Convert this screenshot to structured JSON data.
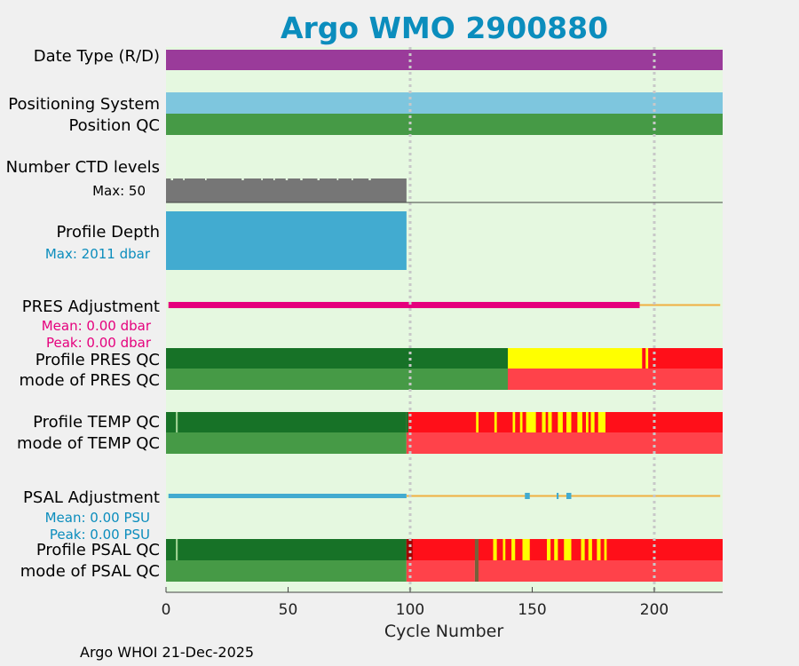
{
  "title": "Argo WMO 2900880",
  "footer": "Argo WHOI 21-Dec-2025",
  "colors": {
    "background": "#e5f8e0",
    "purple": "#9a3b9a",
    "light_blue": "#7ec6de",
    "green": "#469a46",
    "dark_green": "#177227",
    "gray": "#767676",
    "depth_blue": "#42abd0",
    "magenta": "#e5007d",
    "orange": "#f0b040",
    "yellow": "#ffff00",
    "red": "#ff0f19",
    "light_red": "#ff424a",
    "title_blue": "#0b8dbd"
  },
  "labels": {
    "date_type": "Date Type (R/D)",
    "positioning": "Positioning System",
    "position_qc": "Position QC",
    "ctd_levels": "Number CTD levels",
    "ctd_max": "Max: 50",
    "profile_depth": "Profile Depth",
    "depth_max": "Max: 2011 dbar",
    "pres_adj": "PRES Adjustment",
    "pres_mean": "Mean: 0.00 dbar",
    "pres_peak": "Peak: 0.00 dbar",
    "profile_pres_qc": "Profile PRES QC",
    "mode_pres_qc": "mode of PRES QC",
    "profile_temp_qc": "Profile TEMP QC",
    "mode_temp_qc": "mode of TEMP QC",
    "psal_adj": "PSAL Adjustment",
    "psal_mean": "Mean: 0.00 PSU",
    "psal_peak": "Peak: 0.00 PSU",
    "profile_psal_qc": "Profile PSAL QC",
    "mode_psal_qc": "mode of PSAL QC"
  },
  "chart_data": {
    "type": "bar",
    "title": "Argo WMO 2900880",
    "xlabel": "Cycle Number",
    "xlim": [
      0,
      228
    ],
    "xticks": [
      0,
      50,
      100,
      150,
      200
    ],
    "xtick_labels": [
      "0",
      "50",
      "100",
      "150",
      "200"
    ],
    "vlines": [
      100,
      200
    ],
    "ctd_levels_max": 50,
    "profile_depth_max_dbar": 2011,
    "rows": {
      "date_type": [
        {
          "from": 0,
          "to": 228,
          "color": "purple"
        }
      ],
      "positioning_system": [
        {
          "from": 0,
          "to": 228,
          "color": "light_blue"
        }
      ],
      "position_qc": [
        {
          "from": 0,
          "to": 228,
          "color": "green"
        }
      ],
      "ctd_levels": [
        {
          "from": 0,
          "to": 98.5,
          "color": "gray"
        }
      ],
      "profile_depth": [
        {
          "from": 0,
          "to": 98.5,
          "color": "depth_blue"
        }
      ],
      "pres_adjustment": [
        {
          "from": 1,
          "to": 194,
          "color": "magenta",
          "style": "thick"
        },
        {
          "from": 194,
          "to": 227,
          "color": "orange",
          "style": "thin"
        }
      ],
      "profile_pres_qc": [
        {
          "from": 0,
          "to": 140,
          "color": "dark_green"
        },
        {
          "from": 140,
          "to": 195,
          "color": "yellow"
        },
        {
          "from": 195,
          "to": 196.5,
          "color": "red"
        },
        {
          "from": 196.5,
          "to": 197.5,
          "color": "yellow"
        },
        {
          "from": 197.5,
          "to": 228,
          "color": "red"
        }
      ],
      "mode_pres_qc": [
        {
          "from": 0,
          "to": 140,
          "color": "green"
        },
        {
          "from": 140,
          "to": 228,
          "color": "light_red"
        }
      ],
      "profile_temp_qc": [
        {
          "from": 0,
          "to": 98.5,
          "color": "dark_green"
        },
        {
          "from": 98.5,
          "to": 228,
          "color": "red"
        }
      ],
      "profile_temp_qc_marks": [
        {
          "at": 4,
          "w": 0.8,
          "color": "#9bcf8f"
        },
        {
          "at": 98.5,
          "w": 0.7,
          "color": "dark_green"
        },
        {
          "at": 127,
          "w": 1,
          "color": "yellow"
        },
        {
          "at": 134.5,
          "w": 1,
          "color": "yellow"
        },
        {
          "at": 142,
          "w": 1,
          "color": "yellow"
        },
        {
          "at": 145,
          "w": 1,
          "color": "yellow"
        },
        {
          "at": 147.5,
          "w": 4,
          "color": "yellow"
        },
        {
          "at": 154,
          "w": 1.5,
          "color": "yellow"
        },
        {
          "at": 156.5,
          "w": 1.5,
          "color": "yellow"
        },
        {
          "at": 160.5,
          "w": 2,
          "color": "yellow"
        },
        {
          "at": 164,
          "w": 2,
          "color": "yellow"
        },
        {
          "at": 168.5,
          "w": 2,
          "color": "yellow"
        },
        {
          "at": 172,
          "w": 1,
          "color": "yellow"
        },
        {
          "at": 174,
          "w": 1.5,
          "color": "yellow"
        },
        {
          "at": 177,
          "w": 3,
          "color": "yellow"
        }
      ],
      "mode_temp_qc": [
        {
          "from": 0,
          "to": 98.5,
          "color": "green"
        },
        {
          "from": 98.5,
          "to": 228,
          "color": "light_red"
        }
      ],
      "psal_adjustment": [
        {
          "from": 1,
          "to": 98.5,
          "color": "depth_blue",
          "style": "thick"
        },
        {
          "from": 98.5,
          "to": 227,
          "color": "orange",
          "style": "thin"
        }
      ],
      "psal_adjustment_marks": [
        {
          "at": 147,
          "w": 2,
          "color": "depth_blue"
        },
        {
          "at": 160,
          "w": 0.8,
          "color": "depth_blue"
        },
        {
          "at": 164,
          "w": 2,
          "color": "depth_blue"
        }
      ],
      "profile_psal_qc": [
        {
          "from": 0,
          "to": 98.5,
          "color": "dark_green"
        },
        {
          "from": 98.5,
          "to": 228,
          "color": "red"
        }
      ],
      "profile_psal_qc_marks": [
        {
          "at": 4,
          "w": 0.8,
          "color": "#9bcf8f"
        },
        {
          "at": 98.5,
          "w": 2.5,
          "color": "#a50000"
        },
        {
          "at": 126.5,
          "w": 1.5,
          "color": "#77603a"
        },
        {
          "at": 134,
          "w": 1.5,
          "color": "yellow"
        },
        {
          "at": 138,
          "w": 1,
          "color": "yellow"
        },
        {
          "at": 141.5,
          "w": 1.5,
          "color": "yellow"
        },
        {
          "at": 146,
          "w": 3,
          "color": "yellow"
        },
        {
          "at": 156,
          "w": 1.5,
          "color": "yellow"
        },
        {
          "at": 159,
          "w": 1.5,
          "color": "yellow"
        },
        {
          "at": 163,
          "w": 3,
          "color": "yellow"
        },
        {
          "at": 170,
          "w": 1.5,
          "color": "yellow"
        },
        {
          "at": 173,
          "w": 1.5,
          "color": "yellow"
        },
        {
          "at": 176.5,
          "w": 1.5,
          "color": "yellow"
        },
        {
          "at": 179.5,
          "w": 1,
          "color": "yellow"
        }
      ],
      "mode_psal_qc": [
        {
          "from": 0,
          "to": 98.5,
          "color": "green"
        },
        {
          "from": 98.5,
          "to": 126.5,
          "color": "light_red"
        },
        {
          "from": 126.5,
          "to": 128,
          "color": "#77603a"
        },
        {
          "from": 128,
          "to": 228,
          "color": "light_red"
        }
      ]
    }
  }
}
